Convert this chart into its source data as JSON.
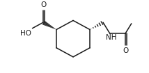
{
  "bg_color": "#ffffff",
  "line_color": "#1a1a1a",
  "line_width": 1.1,
  "figsize": [
    2.14,
    1.05
  ],
  "dpi": 100,
  "labels": {
    "O_carbonyl": {
      "text": "O",
      "fontsize": 7.5
    },
    "HO": {
      "text": "HO",
      "fontsize": 7.5
    },
    "NH": {
      "text": "NH",
      "fontsize": 7.5
    },
    "O_amide": {
      "text": "O",
      "fontsize": 7.5
    }
  }
}
